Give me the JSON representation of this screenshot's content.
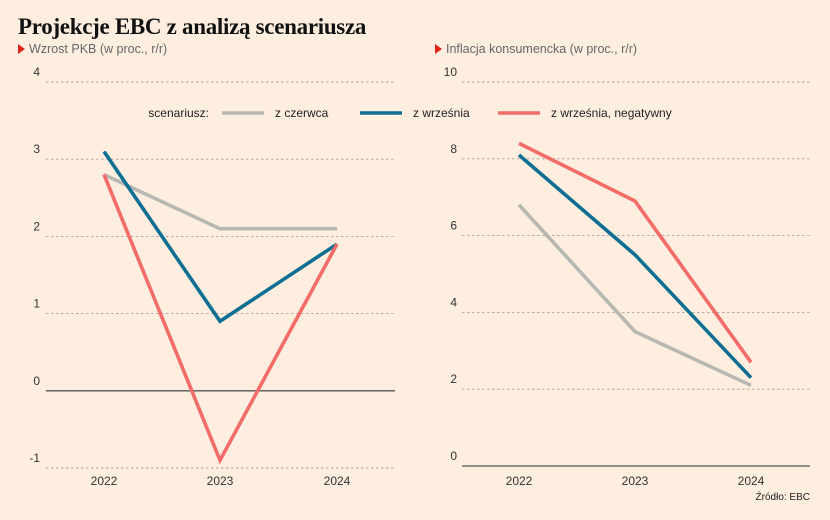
{
  "title": "Projekcje EBC z analizą scenariusza",
  "source": "Źródło: EBC",
  "legend": {
    "label": "scenariusz:",
    "items": [
      {
        "name": "z czerwca",
        "color": "#b8b8b2"
      },
      {
        "name": "z września",
        "color": "#0f6f92"
      },
      {
        "name": "z września, negatywny",
        "color": "#f26c6a"
      }
    ]
  },
  "chart_data": [
    {
      "type": "line",
      "subtitle": "Wzrost PKB (w proc., r/r)",
      "categories": [
        "2022",
        "2023",
        "2024"
      ],
      "ylim": [
        -1,
        4
      ],
      "yticks": [
        -1,
        0,
        1,
        2,
        3,
        4
      ],
      "grid": true,
      "zero_line": true,
      "series": [
        {
          "name": "z czerwca",
          "values": [
            2.8,
            2.1,
            2.1
          ]
        },
        {
          "name": "z września",
          "values": [
            3.1,
            0.9,
            1.9
          ]
        },
        {
          "name": "z września, negatywny",
          "values": [
            2.8,
            -0.9,
            1.9
          ]
        }
      ]
    },
    {
      "type": "line",
      "subtitle": "Inflacja konsumencka (w proc., r/r)",
      "categories": [
        "2022",
        "2023",
        "2024"
      ],
      "ylim": [
        0,
        10
      ],
      "yticks": [
        0,
        2,
        4,
        6,
        8,
        10
      ],
      "grid": true,
      "zero_line": true,
      "series": [
        {
          "name": "z czerwca",
          "values": [
            6.8,
            3.5,
            2.1
          ]
        },
        {
          "name": "z września",
          "values": [
            8.1,
            5.5,
            2.3
          ]
        },
        {
          "name": "z września, negatywny",
          "values": [
            8.4,
            6.9,
            2.7
          ]
        }
      ]
    }
  ]
}
